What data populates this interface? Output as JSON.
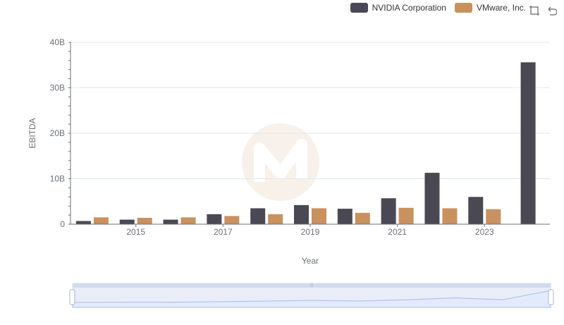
{
  "legend": {
    "series_0": "NVIDIA Corporation",
    "series_1": "VMware, Inc."
  },
  "colors": {
    "nvidia": "#4a4953",
    "vmware": "#c9915e",
    "axis": "#6e7079",
    "grid": "#e0e6f1",
    "zoom_fill": "#e3eafc"
  },
  "toolbox": {
    "zoom_icon": "zoom-icon",
    "restore_icon": "restore-icon"
  },
  "chart_data": {
    "type": "bar",
    "xlabel": "Year",
    "ylabel": "EBITDA",
    "ylim": [
      0,
      40000000000
    ],
    "y_ticks": [
      "0",
      "10B",
      "20B",
      "30B",
      "40B"
    ],
    "x_tick_labels": [
      "2015",
      "2017",
      "2019",
      "2021",
      "2023"
    ],
    "categories": [
      "2014",
      "2015",
      "2016",
      "2017",
      "2018",
      "2019",
      "2020",
      "2021",
      "2022",
      "2023",
      "2024"
    ],
    "series": [
      {
        "name": "NVIDIA Corporation",
        "values": [
          700000000,
          1000000000,
          1000000000,
          2200000000,
          3500000000,
          4200000000,
          3400000000,
          5700000000,
          11300000000,
          6000000000,
          35600000000
        ]
      },
      {
        "name": "VMware, Inc.",
        "values": [
          1500000000,
          1400000000,
          1500000000,
          1800000000,
          2200000000,
          3500000000,
          2500000000,
          3600000000,
          3500000000,
          3300000000,
          null
        ]
      }
    ],
    "legend_position": "top-right",
    "grid": true
  }
}
